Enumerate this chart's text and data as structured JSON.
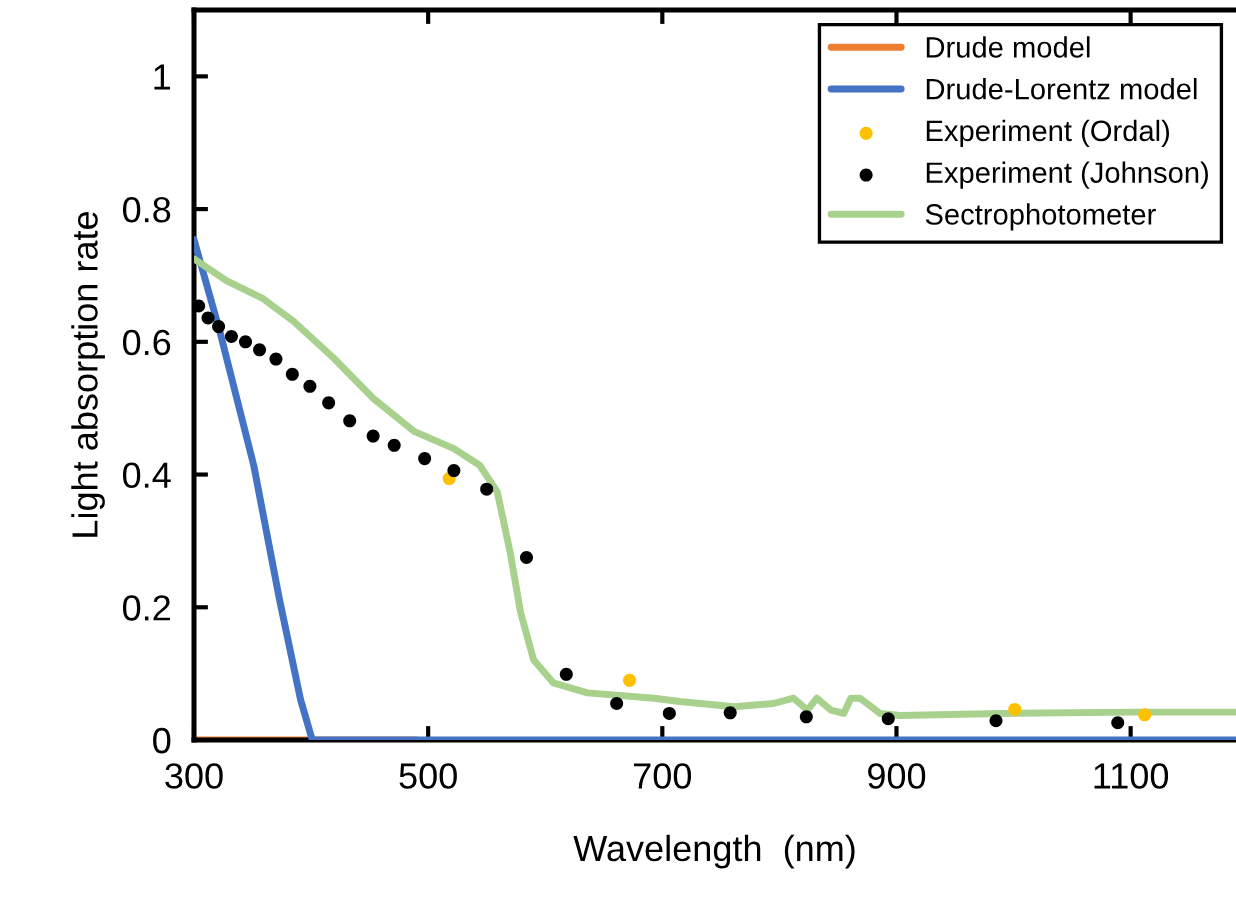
{
  "chart_data": {
    "type": "line",
    "xlabel": "Wavelength  (nm)",
    "ylabel": "Light absorption rate",
    "xlim": [
      300,
      1190
    ],
    "xticks": [
      300,
      500,
      700,
      900,
      1100
    ],
    "ylim": [
      0,
      1.1
    ],
    "yticks": [
      0,
      0.2,
      0.4,
      0.6,
      0.8,
      1
    ],
    "grid": false,
    "legend": "top right",
    "series": [
      {
        "name": "Drude model",
        "color": "#ed7d31",
        "x": [
          300,
          490
        ],
        "values": [
          0,
          0
        ]
      },
      {
        "name": "Drude-Lorentz model",
        "color": "#4472c4",
        "x": [
          300,
          322,
          351,
          373,
          391,
          401,
          1190
        ],
        "values": [
          0.754,
          0.616,
          0.414,
          0.212,
          0.061,
          0,
          0
        ]
      },
      {
        "name": "Experiment (Ordal)",
        "type": "scatter",
        "color": "#ffc000",
        "x": [
          518,
          672,
          1001,
          1112
        ],
        "values": [
          0.394,
          0.09,
          0.046,
          0.038
        ]
      },
      {
        "name": "Experiment (Johnson)",
        "type": "scatter",
        "color": "#000000",
        "x": [
          304,
          312,
          321,
          332,
          344,
          356,
          370,
          384,
          399,
          415,
          433,
          453,
          471,
          497,
          522,
          550,
          584,
          618,
          661,
          706,
          758,
          823,
          893,
          985,
          1089
        ],
        "values": [
          0.654,
          0.636,
          0.623,
          0.608,
          0.6,
          0.588,
          0.574,
          0.551,
          0.533,
          0.508,
          0.481,
          0.458,
          0.444,
          0.424,
          0.406,
          0.378,
          0.275,
          0.099,
          0.055,
          0.04,
          0.041,
          0.035,
          0.032,
          0.029,
          0.026
        ]
      },
      {
        "name": "Sectrophotometer",
        "color": "#a9d18e",
        "x": [
          300,
          328,
          359,
          385,
          419,
          453,
          488,
          522,
          544,
          559,
          570,
          579,
          590,
          607,
          636,
          693,
          715,
          761,
          795,
          812,
          824,
          832,
          844,
          855,
          861,
          869,
          886,
          903,
          989,
          1103,
          1190
        ],
        "values": [
          0.725,
          0.692,
          0.665,
          0.631,
          0.576,
          0.515,
          0.465,
          0.439,
          0.414,
          0.374,
          0.283,
          0.192,
          0.121,
          0.086,
          0.071,
          0.063,
          0.058,
          0.05,
          0.055,
          0.063,
          0.045,
          0.063,
          0.045,
          0.04,
          0.063,
          0.063,
          0.04,
          0.037,
          0.04,
          0.042,
          0.042
        ]
      }
    ]
  }
}
